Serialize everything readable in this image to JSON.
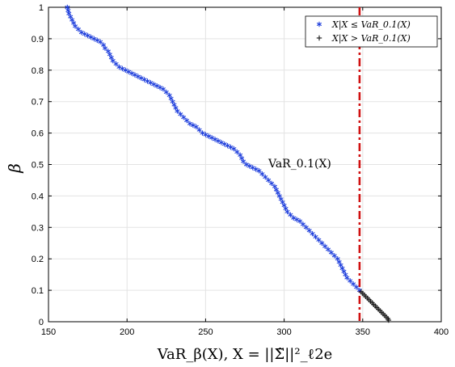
{
  "chart_data": {
    "type": "scatter",
    "xlabel": "VaR_β(X), X = ||Σ̃||²_ℓ2e",
    "ylabel": "β",
    "xlim": [
      150,
      400
    ],
    "ylim": [
      0,
      1
    ],
    "xticks": [
      150,
      200,
      250,
      300,
      350,
      400
    ],
    "yticks": [
      0,
      0.1,
      0.2,
      0.3,
      0.4,
      0.5,
      0.6,
      0.7,
      0.8,
      0.9,
      1
    ],
    "grid": true,
    "legend_position": "top-right",
    "threshold": {
      "x": 348,
      "color": "#d01010",
      "label": "VaR_0.1(X)"
    },
    "series": [
      {
        "name": "X|X ≤ VaR_0.1(X)",
        "marker": "asterisk",
        "color": "#1f3fdc",
        "points": [
          [
            162,
            1.0
          ],
          [
            162.5,
            0.99
          ],
          [
            163,
            0.98
          ],
          [
            164,
            0.97
          ],
          [
            165,
            0.96
          ],
          [
            166,
            0.95
          ],
          [
            167,
            0.94
          ],
          [
            169,
            0.93
          ],
          [
            171,
            0.92
          ],
          [
            173,
            0.915
          ],
          [
            175,
            0.91
          ],
          [
            177,
            0.905
          ],
          [
            179,
            0.9
          ],
          [
            181,
            0.895
          ],
          [
            183,
            0.89
          ],
          [
            185,
            0.88
          ],
          [
            186,
            0.87
          ],
          [
            188,
            0.86
          ],
          [
            189,
            0.85
          ],
          [
            190,
            0.84
          ],
          [
            191,
            0.83
          ],
          [
            193,
            0.82
          ],
          [
            195,
            0.81
          ],
          [
            197,
            0.805
          ],
          [
            199,
            0.8
          ],
          [
            201,
            0.795
          ],
          [
            203,
            0.79
          ],
          [
            205,
            0.785
          ],
          [
            207,
            0.78
          ],
          [
            209,
            0.775
          ],
          [
            211,
            0.77
          ],
          [
            213,
            0.765
          ],
          [
            215,
            0.76
          ],
          [
            217,
            0.755
          ],
          [
            219,
            0.75
          ],
          [
            221,
            0.745
          ],
          [
            223,
            0.74
          ],
          [
            225,
            0.73
          ],
          [
            227,
            0.72
          ],
          [
            228,
            0.71
          ],
          [
            229,
            0.7
          ],
          [
            230,
            0.69
          ],
          [
            231,
            0.68
          ],
          [
            232,
            0.67
          ],
          [
            234,
            0.66
          ],
          [
            236,
            0.65
          ],
          [
            238,
            0.64
          ],
          [
            240,
            0.63
          ],
          [
            242,
            0.625
          ],
          [
            244,
            0.62
          ],
          [
            246,
            0.61
          ],
          [
            248,
            0.6
          ],
          [
            250,
            0.595
          ],
          [
            252,
            0.59
          ],
          [
            254,
            0.585
          ],
          [
            256,
            0.58
          ],
          [
            258,
            0.575
          ],
          [
            260,
            0.57
          ],
          [
            262,
            0.565
          ],
          [
            264,
            0.56
          ],
          [
            266,
            0.555
          ],
          [
            268,
            0.55
          ],
          [
            270,
            0.54
          ],
          [
            272,
            0.53
          ],
          [
            273,
            0.52
          ],
          [
            274,
            0.51
          ],
          [
            276,
            0.5
          ],
          [
            278,
            0.495
          ],
          [
            280,
            0.49
          ],
          [
            282,
            0.485
          ],
          [
            284,
            0.48
          ],
          [
            286,
            0.47
          ],
          [
            288,
            0.46
          ],
          [
            290,
            0.45
          ],
          [
            292,
            0.44
          ],
          [
            294,
            0.43
          ],
          [
            295,
            0.42
          ],
          [
            296,
            0.41
          ],
          [
            297,
            0.4
          ],
          [
            298,
            0.39
          ],
          [
            299,
            0.38
          ],
          [
            300,
            0.37
          ],
          [
            301,
            0.36
          ],
          [
            302,
            0.35
          ],
          [
            304,
            0.34
          ],
          [
            306,
            0.33
          ],
          [
            308,
            0.325
          ],
          [
            310,
            0.32
          ],
          [
            312,
            0.31
          ],
          [
            314,
            0.3
          ],
          [
            316,
            0.29
          ],
          [
            318,
            0.28
          ],
          [
            320,
            0.27
          ],
          [
            322,
            0.26
          ],
          [
            324,
            0.25
          ],
          [
            326,
            0.24
          ],
          [
            328,
            0.23
          ],
          [
            330,
            0.22
          ],
          [
            332,
            0.21
          ],
          [
            334,
            0.2
          ],
          [
            335,
            0.19
          ],
          [
            336,
            0.18
          ],
          [
            337,
            0.17
          ],
          [
            338,
            0.16
          ],
          [
            339,
            0.15
          ],
          [
            340,
            0.14
          ],
          [
            342,
            0.13
          ],
          [
            344,
            0.12
          ],
          [
            346,
            0.11
          ],
          [
            348,
            0.1
          ]
        ]
      },
      {
        "name": "X|X > VaR_0.1(X)",
        "marker": "plus",
        "color": "#111111",
        "points": [
          [
            349,
            0.095
          ],
          [
            350,
            0.09
          ],
          [
            351,
            0.085
          ],
          [
            352,
            0.08
          ],
          [
            353,
            0.075
          ],
          [
            354,
            0.07
          ],
          [
            355,
            0.065
          ],
          [
            356,
            0.06
          ],
          [
            357,
            0.055
          ],
          [
            358,
            0.05
          ],
          [
            359,
            0.045
          ],
          [
            360,
            0.04
          ],
          [
            361,
            0.035
          ],
          [
            362,
            0.03
          ],
          [
            363,
            0.025
          ],
          [
            364,
            0.02
          ],
          [
            365,
            0.015
          ],
          [
            366,
            0.01
          ],
          [
            366.5,
            0.005
          ]
        ]
      }
    ]
  }
}
